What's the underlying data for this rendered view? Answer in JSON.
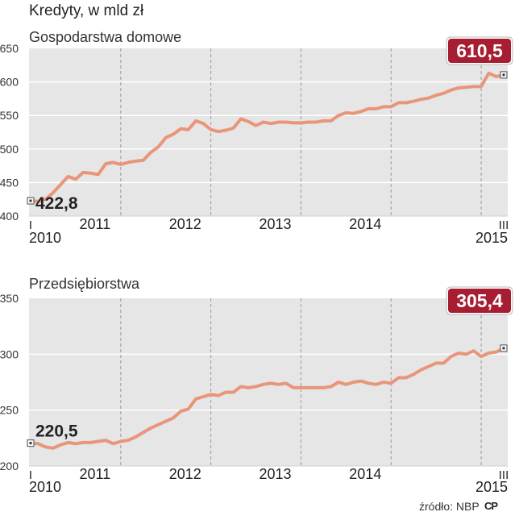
{
  "title": "Kredyty, w mld zł",
  "source": "źródło: NBP",
  "logo": "CP",
  "colors": {
    "line": "#e8967a",
    "panel": "#e6e6e6",
    "badge": "#a71d32",
    "grid": "#9a9a9a"
  },
  "chart_data": [
    {
      "type": "line",
      "title": "Gospodarstwa domowe",
      "ylim": [
        400,
        650
      ],
      "yticks": [
        400,
        450,
        500,
        550,
        600,
        650
      ],
      "x_axis": {
        "start_month_label": "I",
        "start_year_label": "2010",
        "end_month_label": "III",
        "end_year_label": "2015",
        "year_labels": [
          "2011",
          "2012",
          "2013",
          "2014"
        ]
      },
      "start_label": "422,8",
      "end_label": "610,5",
      "values": [
        422.8,
        422,
        425,
        435,
        447,
        459,
        455,
        465,
        464,
        462,
        478,
        480,
        477,
        480,
        482,
        483,
        495,
        503,
        517,
        522,
        530,
        529,
        542,
        538,
        529,
        526,
        528,
        531,
        545,
        541,
        535,
        540,
        538,
        540,
        540,
        539,
        539,
        540,
        540,
        542,
        542,
        550,
        554,
        553,
        556,
        560,
        560,
        563,
        563,
        569,
        569,
        571,
        574,
        576,
        580,
        583,
        588,
        591,
        592,
        593,
        593,
        613,
        608,
        610.5
      ]
    },
    {
      "type": "line",
      "title": "Przedsiębiorstwa",
      "ylim": [
        200,
        350
      ],
      "yticks": [
        200,
        250,
        300,
        350
      ],
      "x_axis": {
        "start_month_label": "I",
        "start_year_label": "2010",
        "end_month_label": "III",
        "end_year_label": "2015",
        "year_labels": [
          "2011",
          "2012",
          "2013",
          "2014"
        ]
      },
      "start_label": "220,5",
      "end_label": "305,4",
      "values": [
        220.5,
        220,
        217,
        216,
        219,
        221,
        220,
        221,
        221,
        222,
        223,
        220,
        222,
        223,
        226,
        230,
        234,
        237,
        240,
        243,
        249,
        251,
        260,
        262,
        264,
        263,
        266,
        266,
        271,
        270,
        271,
        273,
        274,
        273,
        274,
        270,
        270,
        270,
        270,
        270,
        271,
        275,
        273,
        275,
        276,
        274,
        273,
        275,
        274,
        279,
        279,
        282,
        286,
        289,
        292,
        292,
        298,
        301,
        300,
        303,
        298,
        301,
        302,
        305.4
      ]
    }
  ]
}
